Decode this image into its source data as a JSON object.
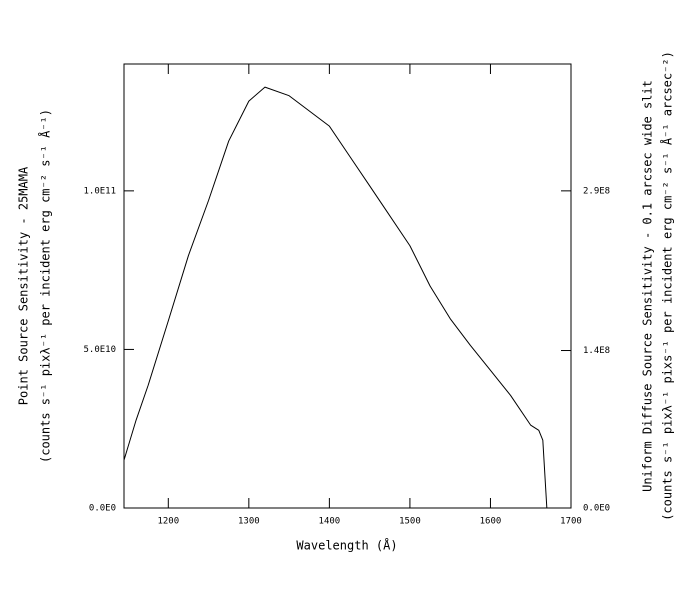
{
  "chart_data": {
    "type": "line",
    "x_label": "Wavelength (Å)",
    "y_label": [
      "Point Source Sensitivity - 25MAMA",
      "(counts s⁻¹ pixλ⁻¹ per incident erg cm⁻² s⁻¹ Å⁻¹)"
    ],
    "y2_label": [
      "Uniform Diffuse Source Sensitivity - 0.1 arcsec wide slit",
      "(counts s⁻¹ pixλ⁻¹ pixs⁻¹ per incident erg cm⁻² s⁻¹ Å⁻¹ arcsec⁻²)"
    ],
    "x": [
      1145,
      1160,
      1175,
      1200,
      1225,
      1250,
      1275,
      1300,
      1320,
      1350,
      1400,
      1425,
      1450,
      1500,
      1525,
      1550,
      1575,
      1600,
      1625,
      1650,
      1660,
      1665,
      1670
    ],
    "series": [
      {
        "color": "#000000",
        "values": [
          15100000000.0,
          27700000000.0,
          38700000000.0,
          59000000000.0,
          79600000000.0,
          97000000000.0,
          115700000000.0,
          128300000000.0,
          132700000000.0,
          130000000000.0,
          120400000000.0,
          111000000000.0,
          101600000000.0,
          82700000000.0,
          70000000000.0,
          59700000000.0,
          51300000000.0,
          43400000000.0,
          35500000000.0,
          26100000000.0,
          24500000000.0,
          21400000000.0,
          0
        ]
      }
    ],
    "xlim": [
      1145,
      1700
    ],
    "xticks": [
      1200,
      1300,
      1400,
      1500,
      1600,
      1700
    ],
    "ylim": [
      0,
      140000000000.0
    ],
    "yticks": [
      {
        "value": 0,
        "label": "0.0E0"
      },
      {
        "value": 50000000000.0,
        "label": "5.0E10"
      },
      {
        "value": 100000000000.0,
        "label": "1.0E11"
      }
    ],
    "y2lim": [
      0,
      406000000.0
    ],
    "y2ticks": [
      {
        "value": 0,
        "label": "0.0E0"
      },
      {
        "value": 144000000.0,
        "label": "1.4E8"
      },
      {
        "value": 290000000.0,
        "label": "2.9E8"
      }
    ]
  }
}
